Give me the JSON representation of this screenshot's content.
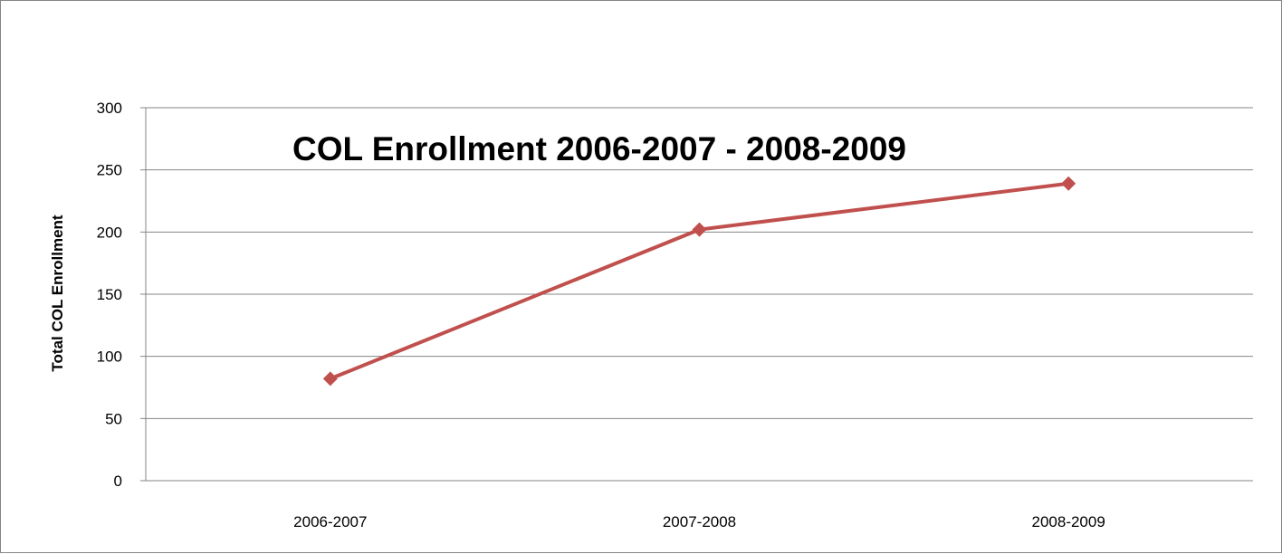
{
  "chart_data": {
    "type": "line",
    "title": "COL Enrollment 2006-2007 - 2008-2009",
    "xlabel": "",
    "ylabel": "Total COL Enrollment",
    "categories": [
      "2006-2007",
      "2007-2008",
      "2008-2009"
    ],
    "series": [
      {
        "values": [
          82,
          202,
          239
        ],
        "color": "#c0504d",
        "marker": "diamond"
      }
    ],
    "ylim": [
      0,
      300
    ],
    "yticks": [
      0,
      50,
      100,
      150,
      200,
      250,
      300
    ],
    "grid": true,
    "legend": "none"
  }
}
